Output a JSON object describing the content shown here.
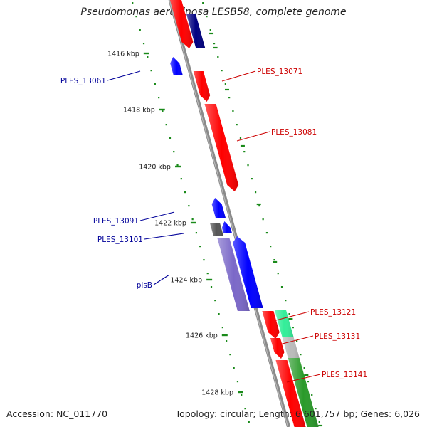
{
  "header": {
    "title": "Pseudomonas aeruginosa LESB58, complete genome"
  },
  "footer": {
    "accession": "Accession: NC_011770",
    "summary": "Topology: circular; Length: 6,601,757 bp; Genes: 6,026"
  },
  "ticks": [
    {
      "label": "1416 kbp",
      "kbp": 1416
    },
    {
      "label": "1418 kbp",
      "kbp": 1418
    },
    {
      "label": "1420 kbp",
      "kbp": 1420
    },
    {
      "label": "1422 kbp",
      "kbp": 1422
    },
    {
      "label": "1424 kbp",
      "kbp": 1424
    },
    {
      "label": "1426 kbp",
      "kbp": 1426
    },
    {
      "label": "1428 kbp",
      "kbp": 1428
    }
  ],
  "genes": [
    {
      "name": "",
      "strand": "+",
      "color": "#ff0000"
    },
    {
      "name": "",
      "strand": "+",
      "color": "#000080"
    },
    {
      "name": "PLES_13061",
      "strand": "-",
      "color": "#0000ff"
    },
    {
      "name": "PLES_13071",
      "strand": "+",
      "color": "#ff0000"
    },
    {
      "name": "PLES_13081",
      "strand": "+",
      "color": "#ff0000"
    },
    {
      "name": "PLES_13091",
      "strand": "-",
      "color": "#0000ff"
    },
    {
      "name": "PLES_13101",
      "strand": "-",
      "color": "#0000ff"
    },
    {
      "name": "",
      "strand": "-",
      "color": "#555555"
    },
    {
      "name": "plsB",
      "strand": "-",
      "color": "#7b68c8"
    },
    {
      "name": "",
      "strand": "-",
      "color": "#0000ff"
    },
    {
      "name": "",
      "strand": "+",
      "color": "#ff0000"
    },
    {
      "name": "PLES_13121",
      "strand": "+",
      "color": "#33ee99"
    },
    {
      "name": "PLES_13131",
      "strand": "+",
      "color": "#bbbbbb"
    },
    {
      "name": "PLES_13141",
      "strand": "+",
      "color": "#2a9a2a"
    },
    {
      "name": "",
      "strand": "+",
      "color": "#ff0000"
    },
    {
      "name": "",
      "strand": "+",
      "color": "#ff0000"
    }
  ],
  "colors": {
    "backbone": "#8a8a8a",
    "tick": "#1a8a1a",
    "forward_label": "#cc0000",
    "reverse_label": "#000099"
  }
}
